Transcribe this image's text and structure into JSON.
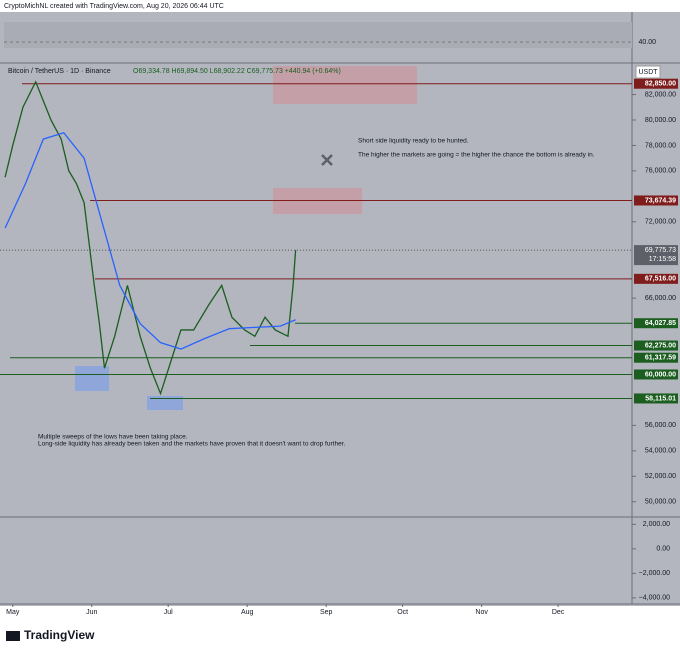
{
  "header": {
    "credit": "CryptoMichNL created with TradingView.com, Aug 20, 2026 06:44 UTC"
  },
  "chart_data": {
    "type": "line",
    "title": "Bitcoin / TetherUS · 1D · Binance",
    "ohlc": "O69,334.78 H69,894.50 L68,902.22 C69,775.73 +440.94 (+0.64%)",
    "currency": "USDT",
    "xlim": [
      -5,
      243
    ],
    "xticks": [
      {
        "value": 0,
        "label": "May"
      },
      {
        "value": 31,
        "label": "Jun"
      },
      {
        "value": 61,
        "label": "Jul"
      },
      {
        "value": 92,
        "label": "Aug"
      },
      {
        "value": 123,
        "label": "Sep"
      },
      {
        "value": 153,
        "label": "Oct"
      },
      {
        "value": 184,
        "label": "Nov"
      },
      {
        "value": 214,
        "label": "Dec"
      }
    ],
    "ylim": [
      48800,
      84400
    ],
    "yticks": [
      {
        "value": 82000,
        "label": "82,000.00"
      },
      {
        "value": 80000,
        "label": "80,000.00"
      },
      {
        "value": 78000,
        "label": "78,000.00"
      },
      {
        "value": 76000,
        "label": "76,000.00"
      },
      {
        "value": 72000,
        "label": "72,000.00"
      },
      {
        "value": 66000,
        "label": "66,000.00"
      },
      {
        "value": 56000,
        "label": "56,000.00"
      },
      {
        "value": 54000,
        "label": "54,000.00"
      },
      {
        "value": 52000,
        "label": "52,000.00"
      },
      {
        "value": 50000,
        "label": "50,000.00"
      }
    ],
    "series": [
      {
        "name": "Close",
        "color": "#1b5e20",
        "x": [
          -3,
          0,
          4,
          9,
          12,
          15,
          19,
          22,
          25,
          28,
          32,
          34,
          36,
          40,
          45,
          50,
          54,
          58,
          62,
          66,
          71,
          77,
          82,
          86,
          91,
          95,
          99,
          103,
          108,
          110,
          111
        ],
        "values": [
          75500,
          78000,
          81000,
          83000,
          81500,
          80000,
          78500,
          76000,
          75000,
          73500,
          67000,
          64000,
          60500,
          63000,
          67000,
          63000,
          60500,
          58500,
          61000,
          63500,
          63500,
          65500,
          67000,
          64500,
          63500,
          63000,
          64500,
          63500,
          63000,
          67000,
          69775.73
        ]
      },
      {
        "name": "MA",
        "color": "#2962ff",
        "x": [
          -3,
          5,
          12,
          20,
          28,
          35,
          42,
          50,
          58,
          66,
          75,
          85,
          95,
          105,
          111
        ],
        "values": [
          71500,
          75000,
          78500,
          79000,
          77000,
          72000,
          67000,
          64000,
          62500,
          62000,
          62800,
          63600,
          63700,
          63800,
          64300
        ]
      }
    ],
    "levels": [
      {
        "value": 82850,
        "label": "82,850.00",
        "color": "#7f1d1d"
      },
      {
        "value": 73674.39,
        "label": "73,674.39",
        "color": "#7f1d1d"
      },
      {
        "value": 67516,
        "label": "67,516.00",
        "color": "#7f1d1d"
      },
      {
        "value": 64027.85,
        "label": "64,027.85",
        "color": "#1b5e20"
      },
      {
        "value": 62275,
        "label": "62,275.00",
        "color": "#1b5e20"
      },
      {
        "value": 61317.59,
        "label": "61,317.59",
        "color": "#1b5e20"
      },
      {
        "value": 60000,
        "label": "60,000.00",
        "color": "#1b5e20"
      },
      {
        "value": 58115.01,
        "label": "58,115.01",
        "color": "#1b5e20"
      }
    ],
    "last_price": {
      "value": 69775.73,
      "label": "69,775.73",
      "countdown": "17:15:58"
    },
    "annotations": [
      "Short side liquidity ready to be hunted.",
      "The higher the markets are going = the higher the chance the bottom is already in.",
      "Multiple sweeps of the lows have been taking place.",
      "Long-side liquidity has already been taken and the markets have proven that it doesn't want to drop further."
    ],
    "rsi_yticks": [
      {
        "value": 40,
        "label": "40.00"
      }
    ],
    "macd_ylim": [
      -4500,
      2600
    ],
    "macd_yticks": [
      {
        "value": 2000,
        "label": "2,000.00"
      },
      {
        "value": 0,
        "label": "0.00"
      },
      {
        "value": -2000,
        "label": "−2,000.00"
      },
      {
        "value": -4000,
        "label": "−4,000.00"
      }
    ]
  },
  "footer": {
    "brand": "TradingView"
  }
}
